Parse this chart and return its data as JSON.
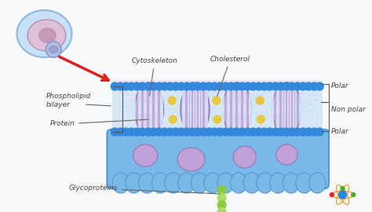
{
  "bg": "#f8f9fb",
  "colors": {
    "mem_blue_light": "#a8d4f0",
    "mem_blue": "#7ab8e8",
    "mem_blue_dark": "#5598c8",
    "mem_blue_lower": "#88c0e8",
    "head_blue": "#3388dd",
    "head_blue2": "#4499ee",
    "bilayer_interior": "#d0e8f8",
    "protein_lavender": "#c8a0d8",
    "protein_outline": "#9070b0",
    "chol_yellow": "#e8c840",
    "cyto_pink": "#d8b8d8",
    "cyto_pink2": "#e0c8e0",
    "lower_purple": "#b090cc",
    "lower_purple2": "#c8a0d8",
    "gp_green": "#88cc44",
    "gp_light": "#aade66",
    "cell_outer": "#c8e0f8",
    "cell_border": "#90b8d8",
    "cell_pink": "#e0c0d8",
    "cell_pink_border": "#b890a8",
    "cell_nucleus": "#c898b8",
    "zoom_circle": "#9898cc",
    "arrow_red": "#dd2020",
    "label_col": "#444444",
    "atom_blue": "#2288ee",
    "atom_orange": "#ee9922",
    "atom_green": "#44aa22",
    "atom_red": "#ee2222"
  },
  "labels": {
    "phospholipid_bilayer": "Phospholipid\nbilayer",
    "cytoskeleton": "Cytoskeleton",
    "cholesterol": "Cholesterol",
    "protein": "Protein",
    "polar_top": "Polar",
    "non_polar": "Non polar",
    "polar_bottom": "Polar",
    "glycoproteins": "Glycoproteins"
  }
}
